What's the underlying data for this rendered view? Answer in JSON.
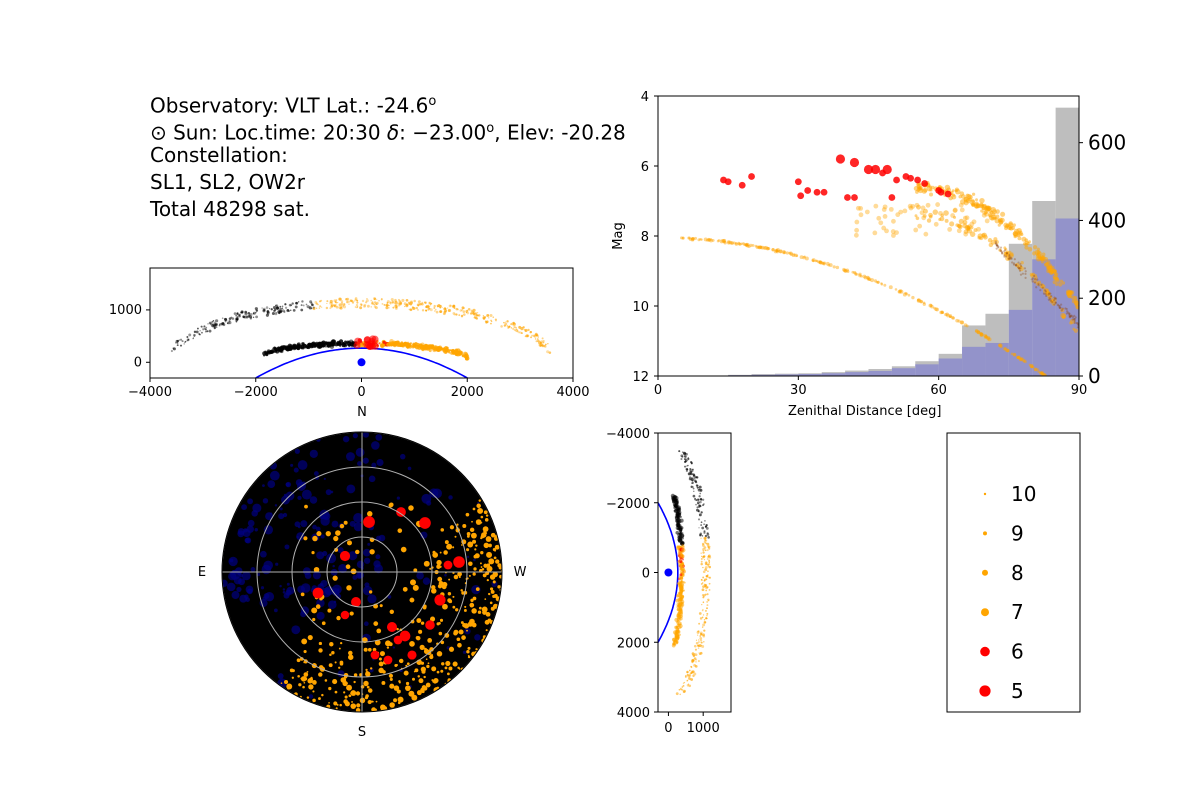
{
  "info": {
    "observatory": "Observatory: VLT Lat.: -24.6",
    "observatory_sup": "o",
    "sun_prefix": "⊙ Sun: Loc.time: 20:30 ",
    "sun_delta": "δ",
    "sun_mid": ": −23.00",
    "sun_sup": "o",
    "sun_suffix": ", Elev: -20.28",
    "constellation_label": "Constellation:",
    "constellation_value": "SL1, SL2, OW2r",
    "total": "Total 48298 sat."
  },
  "colors": {
    "mag5": "#ff0000",
    "mag6": "#ff0000",
    "mag7": "#ffa500",
    "mag8": "#ffa500",
    "mag9": "#ffa500",
    "mag10": "#ffa500",
    "shadow": "#000000",
    "earth": "#0000ff",
    "hist_all": "#bebebe",
    "hist_lit": "#8c8ccc",
    "sky_bg": "#000000",
    "sky_shadowed": "#000080"
  },
  "chart_data": [
    {
      "id": "side-view-horizontal",
      "type": "scatter",
      "x_ticks": [
        "−4000",
        "−2000",
        "0",
        "2000",
        "4000"
      ],
      "y_ticks": [
        "0",
        "1000"
      ],
      "xlim": [
        -4000,
        4000
      ],
      "ylim": [
        -300,
        1800
      ],
      "observer": [
        0,
        0
      ]
    },
    {
      "id": "mag-vs-zenith",
      "type": "scatter",
      "xlabel": "Zenithal Distance [deg]",
      "ylabel": "Mag",
      "x_ticks": [
        "0",
        "30",
        "60",
        "90"
      ],
      "y_ticks": [
        "4",
        "6",
        "8",
        "10",
        "12"
      ],
      "y2_ticks": [
        "0",
        "200",
        "400",
        "600"
      ],
      "xlim": [
        0,
        90
      ],
      "ylim": [
        12,
        4
      ],
      "y2lim": [
        0,
        720
      ],
      "series": [
        {
          "shell": "upper",
          "points": [
            [
              14,
              6.4
            ],
            [
              15,
              6.45
            ],
            [
              18,
              6.55
            ],
            [
              20,
              6.3
            ],
            [
              30,
              6.45
            ],
            [
              30.5,
              6.85
            ],
            [
              32,
              6.7
            ],
            [
              34,
              6.75
            ],
            [
              35.5,
              6.75
            ],
            [
              39,
              5.8
            ],
            [
              40.5,
              6.9
            ],
            [
              42,
              5.9
            ],
            [
              42,
              6.9
            ],
            [
              45,
              6.1
            ],
            [
              46.5,
              6.1
            ],
            [
              48,
              6.2
            ],
            [
              49,
              6.1
            ],
            [
              50,
              6.9
            ],
            [
              51,
              6.4
            ],
            [
              53,
              6.3
            ],
            [
              54,
              6.35
            ],
            [
              55.5,
              6.4
            ],
            [
              57,
              6.5
            ],
            [
              60,
              6.7
            ],
            [
              60.5,
              6.75
            ],
            [
              62,
              6.8
            ]
          ]
        },
        {
          "shell": "lower",
          "points": [
            [
              5,
              8.05
            ],
            [
              14,
              8.1
            ],
            [
              15,
              8.12
            ],
            [
              20,
              8.2
            ],
            [
              25,
              8.25
            ],
            [
              30,
              8.3
            ],
            [
              35,
              8.4
            ],
            [
              40,
              8.55
            ],
            [
              45,
              8.7
            ],
            [
              50,
              8.85
            ],
            [
              55,
              9.05
            ],
            [
              60,
              9.3
            ],
            [
              65,
              9.6
            ],
            [
              70,
              9.95
            ],
            [
              75,
              10.3
            ],
            [
              80,
              10.65
            ],
            [
              85,
              11.0
            ],
            [
              89,
              11.2
            ]
          ]
        }
      ],
      "histograms": [
        {
          "name": "all",
          "edges": [
            0,
            10,
            15,
            20,
            25,
            30,
            35,
            40,
            45,
            50,
            55,
            60,
            65,
            70,
            75,
            80,
            85,
            90
          ],
          "counts": [
            0,
            1,
            3,
            5,
            6,
            7,
            10,
            14,
            18,
            25,
            38,
            57,
            130,
            160,
            340,
            450,
            690
          ]
        },
        {
          "name": "lit",
          "edges": [
            0,
            10,
            15,
            20,
            25,
            30,
            35,
            40,
            45,
            50,
            55,
            60,
            65,
            70,
            75,
            80,
            85,
            90
          ],
          "counts": [
            0,
            1,
            2,
            3,
            4,
            5,
            7,
            10,
            13,
            20,
            30,
            45,
            75,
            85,
            170,
            300,
            405
          ]
        }
      ]
    },
    {
      "id": "sky-map",
      "type": "scatter",
      "labels": {
        "n": "N",
        "s": "S",
        "e": "E",
        "w": "W"
      },
      "circles": 4
    },
    {
      "id": "side-view-vertical",
      "type": "scatter",
      "x_ticks": [
        "0",
        "1000"
      ],
      "y_ticks": [
        "−4000",
        "−2000",
        "0",
        "2000",
        "4000"
      ],
      "xlim": [
        -300,
        1800
      ],
      "ylim": [
        -4000,
        4000
      ],
      "observer": [
        0,
        0
      ]
    },
    {
      "id": "legend",
      "entries": [
        {
          "label": "10",
          "size": 1.2,
          "color": "#ffa500"
        },
        {
          "label": "9",
          "size": 2.0,
          "color": "#ffa500"
        },
        {
          "label": "8",
          "size": 3.0,
          "color": "#ffa500"
        },
        {
          "label": "7",
          "size": 4.0,
          "color": "#ffa500"
        },
        {
          "label": "6",
          "size": 4.8,
          "color": "#ff0000"
        },
        {
          "label": "5",
          "size": 5.6,
          "color": "#ff0000"
        }
      ]
    }
  ]
}
